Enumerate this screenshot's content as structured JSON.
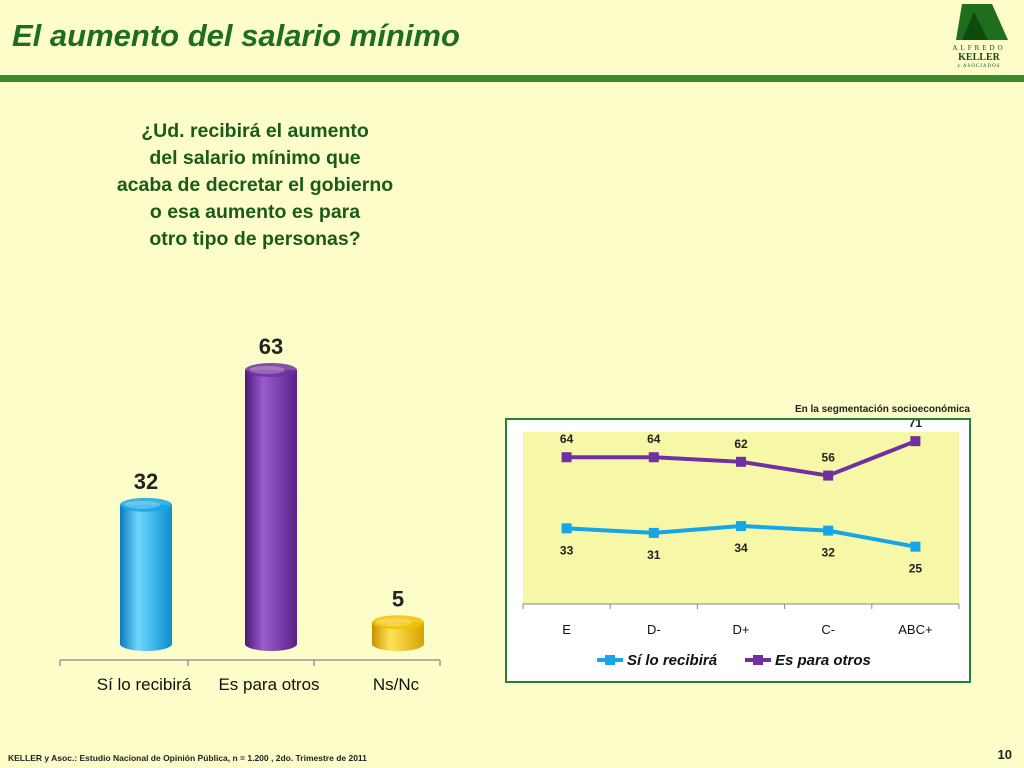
{
  "title": "El aumento del salario mínimo",
  "logo": {
    "line1": "ALFREDO",
    "line2": "KELLER",
    "line3": "y ASOCIADOS"
  },
  "question": [
    "¿Ud. recibirá el aumento",
    "del salario mínimo que",
    "acaba de decretar el gobierno",
    "o esa aumento es para",
    "otro tipo de personas?"
  ],
  "segment_caption": "En la segmentación socioeconómica",
  "footer": "KELLER y Asoc.: Estudio Nacional de Opinión Pública, n = 1.200 , 2do. Trimestre de 2011",
  "page_number": "10",
  "colors": {
    "green": "#1e6e1e",
    "cyan": "#16a6e8",
    "purple": "#7030a0",
    "gold": "#f2c200",
    "panel_plot_bg": "#f7f7a8"
  },
  "chart_data": [
    {
      "type": "bar",
      "categories": [
        "Sí lo recibirá",
        "Es para otros",
        "Ns/Nc"
      ],
      "values": [
        32,
        63,
        5
      ],
      "ylim": [
        0,
        63
      ],
      "colors": [
        "#16a6e8",
        "#7030a0",
        "#f2c200"
      ],
      "title": "",
      "xlabel": "",
      "ylabel": ""
    },
    {
      "type": "line",
      "categories": [
        "E",
        "D-",
        "D+",
        "C-",
        "ABC+"
      ],
      "series": [
        {
          "name": "Sí lo recibirá",
          "values": [
            33,
            31,
            34,
            32,
            25
          ],
          "color": "#16a6e8"
        },
        {
          "name": "Es para otros",
          "values": [
            64,
            64,
            62,
            56,
            71
          ],
          "color": "#7030a0"
        }
      ],
      "ylim": [
        0,
        75
      ],
      "legend": "bottom",
      "grid": false,
      "title": "",
      "xlabel": "",
      "ylabel": ""
    }
  ]
}
